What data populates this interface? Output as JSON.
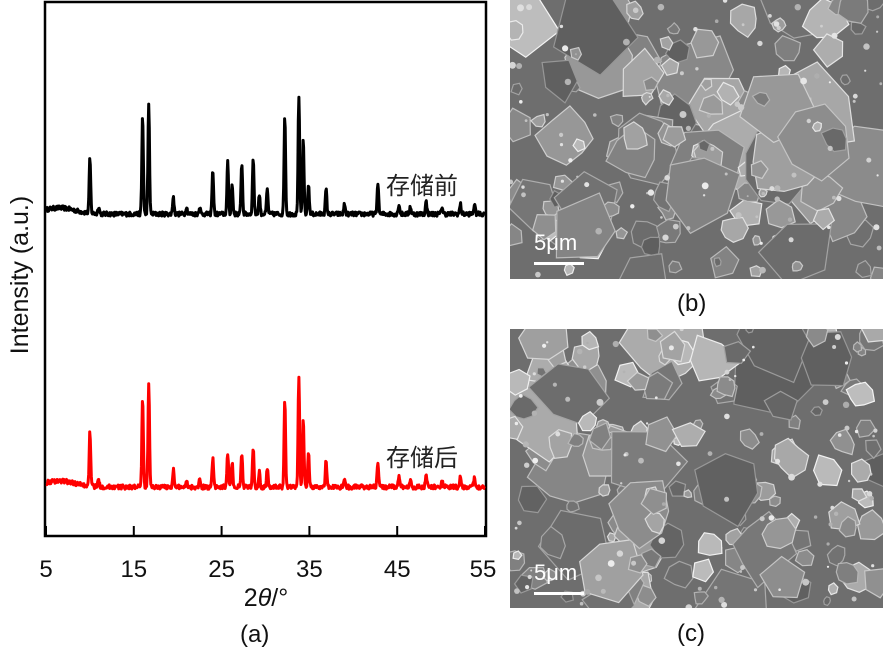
{
  "chart_data": {
    "type": "line",
    "xlabel_prefix": "2",
    "xlabel_symbol": "θ",
    "xlabel_unit": "/°",
    "ylabel": "Intensity (a.u.)",
    "xlim": [
      5,
      55
    ],
    "xticks": [
      5,
      15,
      25,
      35,
      45,
      55
    ],
    "yticks": [],
    "series": [
      {
        "name": "存储前",
        "color": "#000000",
        "offset": 0.62,
        "peaks": [
          [
            10.0,
            0.22
          ],
          [
            11.0,
            0.03
          ],
          [
            16.0,
            0.4
          ],
          [
            16.7,
            0.45
          ],
          [
            19.5,
            0.07
          ],
          [
            21.0,
            0.03
          ],
          [
            22.5,
            0.03
          ],
          [
            24.0,
            0.18
          ],
          [
            25.7,
            0.21
          ],
          [
            26.2,
            0.12
          ],
          [
            27.3,
            0.21
          ],
          [
            28.6,
            0.23
          ],
          [
            29.3,
            0.08
          ],
          [
            30.2,
            0.1
          ],
          [
            32.2,
            0.4
          ],
          [
            33.8,
            0.48
          ],
          [
            34.3,
            0.3
          ],
          [
            34.9,
            0.12
          ],
          [
            36.9,
            0.1
          ],
          [
            39.0,
            0.04
          ],
          [
            42.8,
            0.13
          ],
          [
            45.2,
            0.04
          ],
          [
            46.5,
            0.03
          ],
          [
            48.3,
            0.05
          ],
          [
            50.1,
            0.03
          ],
          [
            52.2,
            0.04
          ],
          [
            53.8,
            0.04
          ]
        ]
      },
      {
        "name": "存储后",
        "color": "#ff0000",
        "offset": 0.0,
        "peaks": [
          [
            10.0,
            0.22
          ],
          [
            11.0,
            0.03
          ],
          [
            16.0,
            0.36
          ],
          [
            16.7,
            0.42
          ],
          [
            19.5,
            0.07
          ],
          [
            21.0,
            0.03
          ],
          [
            22.5,
            0.03
          ],
          [
            24.0,
            0.12
          ],
          [
            25.7,
            0.14
          ],
          [
            26.2,
            0.1
          ],
          [
            27.3,
            0.14
          ],
          [
            28.6,
            0.16
          ],
          [
            29.3,
            0.06
          ],
          [
            30.2,
            0.08
          ],
          [
            32.2,
            0.35
          ],
          [
            33.8,
            0.45
          ],
          [
            34.3,
            0.28
          ],
          [
            34.9,
            0.14
          ],
          [
            36.9,
            0.11
          ],
          [
            39.0,
            0.04
          ],
          [
            42.8,
            0.1
          ],
          [
            45.2,
            0.04
          ],
          [
            46.5,
            0.03
          ],
          [
            48.3,
            0.05
          ],
          [
            50.1,
            0.03
          ],
          [
            52.2,
            0.04
          ],
          [
            53.8,
            0.04
          ]
        ]
      }
    ]
  },
  "panels": {
    "a_label": "(a)",
    "b_label": "(b)",
    "c_label": "(c)",
    "b_scale": "5μm",
    "c_scale": "5μm"
  }
}
